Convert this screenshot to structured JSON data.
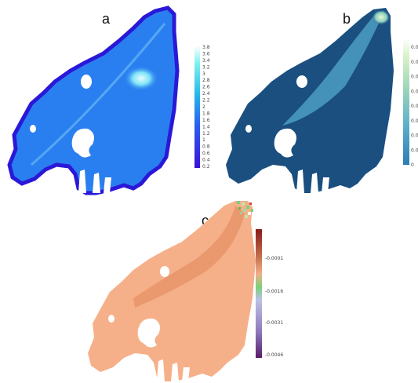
{
  "panels": [
    {
      "id": "a",
      "label": "a"
    },
    {
      "id": "b",
      "label": "b"
    },
    {
      "id": "c",
      "label": "c"
    }
  ],
  "legend_a": {
    "ticks": [
      "3.8",
      "3.6",
      "3.4",
      "3.2",
      "3",
      "2.8",
      "2.6",
      "2.4",
      "2.2",
      "2",
      "1.8",
      "1.6",
      "1.4",
      "1.2",
      "1",
      "0.8",
      "0.6",
      "0.4",
      "0.2"
    ],
    "colors": [
      "#ffffff",
      "#7df0ee",
      "#22b8e8",
      "#2b5ff0",
      "#3a10d8"
    ]
  },
  "legend_b": {
    "ticks": [
      "0.0",
      "0.0",
      "0.0",
      "0.0",
      "0.0",
      "0.0",
      "0.0",
      "0.0",
      "0"
    ],
    "colors": [
      "#ffffff",
      "#d8f2c8",
      "#9dd6b8",
      "#5aaecc",
      "#2d7db2"
    ]
  },
  "legend_c": {
    "ticks": [
      "-0.0001",
      "-0.0016",
      "-0.0031",
      "-0.0046"
    ],
    "colors": [
      "#8a1a1a",
      "#c06a48",
      "#f0b08a",
      "#7ad07a",
      "#bcc2e6",
      "#8c78b8",
      "#5a1a6a"
    ]
  },
  "map_colors": {
    "a_fill": "#2a7ff0",
    "a_light": "#5fb2f6",
    "a_edge": "#2a18d8",
    "b_fill": "#1a4f80",
    "b_light": "#4c9cc4",
    "c_fill": "#f6b089",
    "c_dark": "#e68e62"
  }
}
